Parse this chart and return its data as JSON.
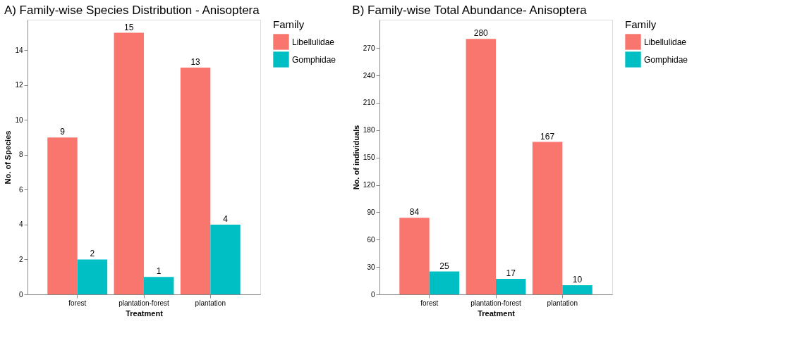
{
  "chart_data": [
    {
      "type": "bar",
      "title": "A) Family-wise Species Distribution - Anisoptera",
      "xlabel": "Treatment",
      "ylabel": "No. of Species",
      "legend_title": "Family",
      "legend": "right",
      "grid": false,
      "data_labels": true,
      "categories": [
        "forest",
        "plantation-forest",
        "plantation"
      ],
      "series": [
        {
          "name": "Libellulidae",
          "color": "#f8766d",
          "values": [
            9,
            15,
            13
          ]
        },
        {
          "name": "Gomphidae",
          "color": "#00bfc4",
          "values": [
            2,
            1,
            4
          ]
        }
      ],
      "ylim": [
        0,
        15.75
      ],
      "yticks": [
        0,
        2,
        4,
        6,
        8,
        10,
        12,
        14
      ]
    },
    {
      "type": "bar",
      "title": "B) Family-wise Total Abundance- Anisoptera",
      "xlabel": "Treatment",
      "ylabel": "No. of individuals",
      "legend_title": "Family",
      "legend": "right",
      "grid": false,
      "data_labels": true,
      "categories": [
        "forest",
        "plantation-forest",
        "plantation"
      ],
      "series": [
        {
          "name": "Libellulidae",
          "color": "#f8766d",
          "values": [
            84,
            280,
            167
          ]
        },
        {
          "name": "Gomphidae",
          "color": "#00bfc4",
          "values": [
            25,
            17,
            10
          ]
        }
      ],
      "ylim": [
        0,
        301
      ],
      "yticks": [
        0,
        30,
        60,
        90,
        120,
        150,
        180,
        210,
        240,
        270
      ]
    }
  ]
}
